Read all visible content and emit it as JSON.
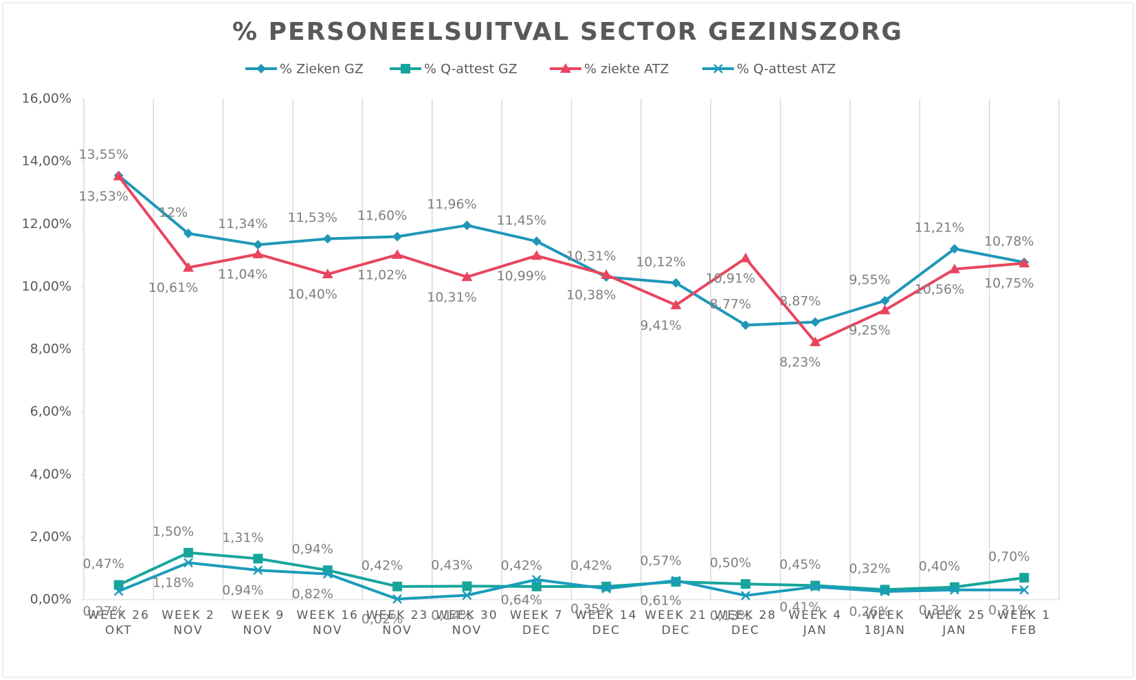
{
  "chart_data": {
    "type": "line",
    "title": "% PERSONEELSUITVAL SECTOR GEZINSZORG",
    "categories": [
      [
        "WEEK 26",
        "OKT"
      ],
      [
        "WEEK 2",
        "NOV"
      ],
      [
        "WEEK 9",
        "NOV"
      ],
      [
        "WEEK 16",
        "NOV"
      ],
      [
        "WEEK 23",
        "NOV"
      ],
      [
        "WEEK 30",
        "NOV"
      ],
      [
        "WEEK 7",
        "DEC"
      ],
      [
        "WEEK 14",
        "DEC"
      ],
      [
        "WEEK 21",
        "DEC"
      ],
      [
        "WEEK 28",
        "DEC"
      ],
      [
        "WEEK 4",
        "JAN"
      ],
      [
        "WEEK",
        "18JAN"
      ],
      [
        "WEEK 25",
        "JAN"
      ],
      [
        "WEEK 1",
        "FEB"
      ]
    ],
    "series": [
      {
        "name": "% Zieken GZ",
        "color": "#1f97b7",
        "marker": "diamond",
        "values": [
          13.55,
          11.7,
          11.34,
          11.53,
          11.6,
          11.96,
          11.45,
          10.31,
          10.12,
          8.77,
          8.87,
          9.55,
          11.21,
          10.78
        ],
        "value_labels": [
          "13,55%",
          "12%",
          "11,34%",
          "11,53%",
          "11,60%",
          "11,96%",
          "11,45%",
          "10,31%",
          "10,12%",
          "8,77%",
          "8,87%",
          "9,55%",
          "11,21%",
          "10,78%"
        ]
      },
      {
        "name": "% Q-attest GZ",
        "color": "#17a59b",
        "marker": "square",
        "values": [
          0.47,
          1.5,
          1.31,
          0.94,
          0.42,
          0.43,
          0.42,
          0.42,
          0.57,
          0.5,
          0.45,
          0.32,
          0.4,
          0.7
        ],
        "value_labels": [
          "0,47%",
          "1,50%",
          "1,31%",
          "0,94%",
          "0,42%",
          "0,43%",
          "0,42%",
          "0,42%",
          "0,57%",
          "0,50%",
          "0,45%",
          "0,32%",
          "0,40%",
          "0,70%"
        ]
      },
      {
        "name": "% ziekte ATZ",
        "color": "#e8455f",
        "marker": "triangle",
        "values": [
          13.53,
          10.61,
          11.04,
          10.4,
          11.02,
          10.31,
          10.99,
          10.38,
          9.41,
          10.91,
          8.23,
          9.25,
          10.56,
          10.75
        ],
        "value_labels": [
          "13,53%",
          "10,61%",
          "11,04%",
          "10,40%",
          "11,02%",
          "10,31%",
          "10,99%",
          "10,38%",
          "9,41%",
          "10,91%",
          "8,23%",
          "9,25%",
          "10,56%",
          "10,75%"
        ]
      },
      {
        "name": "% Q-attest ATZ",
        "color": "#1b9cba",
        "marker": "x",
        "values": [
          0.27,
          1.18,
          0.94,
          0.82,
          0.02,
          0.14,
          0.64,
          0.35,
          0.61,
          0.13,
          0.41,
          0.26,
          0.31,
          0.31
        ],
        "value_labels": [
          "0,27%",
          "1,18%",
          "0,94%",
          "0,82%",
          "0,02%",
          "0,14%",
          "0,64%",
          "0,35%",
          "0,61%",
          "0,13%",
          "0,41%",
          "0,26%",
          "0,31%",
          "0,31%"
        ]
      }
    ],
    "ylim": [
      0,
      16
    ],
    "yticks": [
      {
        "value": 0,
        "label": "0,00%"
      },
      {
        "value": 2,
        "label": "2,00%"
      },
      {
        "value": 4,
        "label": "4,00%"
      },
      {
        "value": 6,
        "label": "6,00%"
      },
      {
        "value": 8,
        "label": "8,00%"
      },
      {
        "value": 10,
        "label": "10,00%"
      },
      {
        "value": 12,
        "label": "12,00%"
      },
      {
        "value": 14,
        "label": "14,00%"
      },
      {
        "value": 16,
        "label": "16,00%"
      }
    ],
    "grid": true,
    "legend": "top"
  }
}
